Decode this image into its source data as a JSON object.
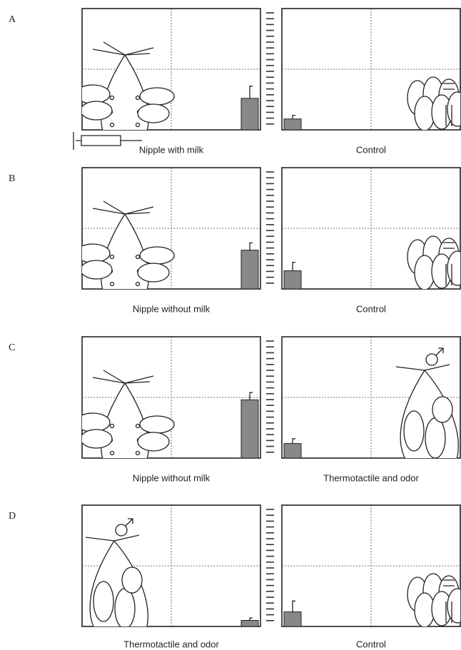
{
  "chart_data": [
    {
      "type": "bar",
      "label": "A",
      "categories": [
        "Nipple with milk",
        "Control"
      ],
      "values": [
        26,
        9
      ],
      "errors": [
        10,
        3
      ],
      "ylim": [
        0,
        100
      ],
      "color": "#888888"
    },
    {
      "type": "bar",
      "label": "B",
      "categories": [
        "Nipple without milk",
        "Control"
      ],
      "values": [
        32,
        15
      ],
      "errors": [
        6,
        7
      ],
      "ylim": [
        0,
        100
      ],
      "color": "#888888"
    },
    {
      "type": "bar",
      "label": "C",
      "categories": [
        "Nipple without milk",
        "Thermotactile and odor"
      ],
      "values": [
        48,
        12
      ],
      "errors": [
        6,
        4
      ],
      "ylim": [
        0,
        100
      ],
      "color": "#888888"
    },
    {
      "type": "bar",
      "label": "D",
      "categories": [
        "Thermotactile and odor",
        "Control"
      ],
      "values": [
        5,
        12
      ],
      "errors": [
        2,
        9
      ],
      "ylim": [
        0,
        100
      ],
      "color": "#888888"
    }
  ]
}
